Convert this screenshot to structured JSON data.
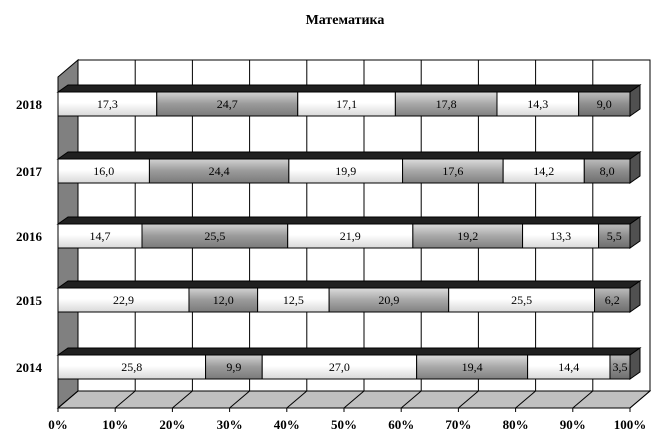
{
  "chart_data": {
    "type": "bar",
    "stacked": true,
    "orientation": "horizontal",
    "percent": true,
    "title": "Математика",
    "categories": [
      "2014",
      "2015",
      "2016",
      "2017",
      "2018"
    ],
    "series": [
      {
        "values": [
          25.8,
          22.9,
          14.7,
          16.0,
          17.3
        ],
        "labels": [
          "25,8",
          "22,9",
          "14,7",
          "16,0",
          "17,3"
        ]
      },
      {
        "values": [
          9.9,
          12.0,
          25.5,
          24.4,
          24.7
        ],
        "labels": [
          "9,9",
          "12,0",
          "25,5",
          "24,4",
          "24,7"
        ]
      },
      {
        "values": [
          27.0,
          12.5,
          21.9,
          19.9,
          17.1
        ],
        "labels": [
          "27,0",
          "12,5",
          "21,9",
          "19,9",
          "17,1"
        ]
      },
      {
        "values": [
          19.4,
          20.9,
          19.2,
          17.6,
          17.8
        ],
        "labels": [
          "19,4",
          "20,9",
          "19,2",
          "17,6",
          "17,8"
        ]
      },
      {
        "values": [
          14.4,
          25.5,
          13.3,
          14.2,
          14.3
        ],
        "labels": [
          "14,4",
          "25,5",
          "13,3",
          "14,2",
          "14,3"
        ]
      },
      {
        "values": [
          3.5,
          6.2,
          5.5,
          8.0,
          9.0
        ],
        "labels": [
          "3,5",
          "6,2",
          "5,5",
          "8,0",
          "9,0"
        ]
      }
    ],
    "xlim": [
      0,
      100
    ],
    "xticks": [
      "0%",
      "10%",
      "20%",
      "30%",
      "40%",
      "50%",
      "60%",
      "70%",
      "80%",
      "90%",
      "100%"
    ],
    "grid": true,
    "style": "3d",
    "colors": {
      "series_fill": [
        "#ffffff",
        "#a0a0a0",
        "#ffffff",
        "#a8a8a8",
        "#ffffff",
        "#909090"
      ],
      "side_wall": "#808080",
      "floor": "#c0c0c0",
      "bar_top": "#202020"
    }
  }
}
